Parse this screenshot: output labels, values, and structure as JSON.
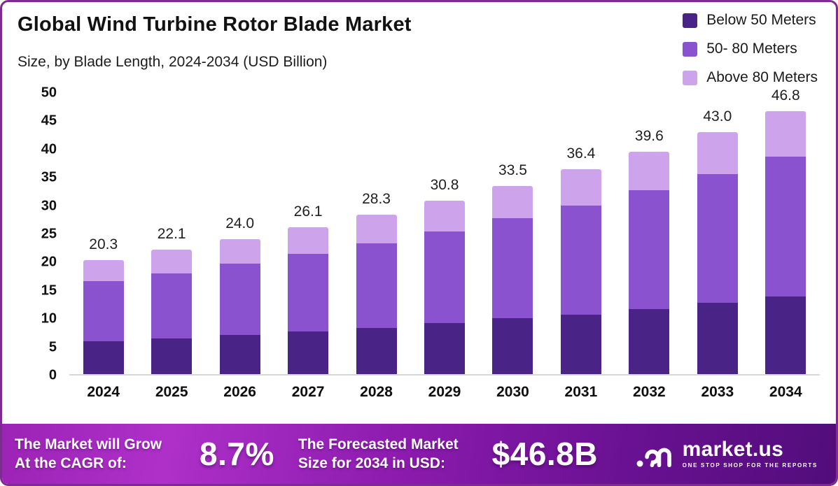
{
  "header": {
    "title": "Global Wind Turbine Rotor Blade Market",
    "subtitle": "Size, by Blade Length, 2024-2034 (USD Billion)"
  },
  "colors": {
    "below_50": "#4a2386",
    "mid_50_80": "#8a52ce",
    "above_80": "#cda4ec",
    "frame_border": "#7d2b92",
    "banner_gradient_left": "#ae30c9",
    "banner_gradient_right": "#520d7a",
    "axis_baseline": "#d8d8d8"
  },
  "chart_data": {
    "type": "bar",
    "stacked": true,
    "title": "Global Wind Turbine Rotor Blade Market Size, by Blade Length, 2024-2034 (USD Billion)",
    "xlabel": "",
    "ylabel": "USD Billion",
    "ylim": [
      0,
      50
    ],
    "y_ticks": [
      0,
      5,
      10,
      15,
      20,
      25,
      30,
      35,
      40,
      45,
      50
    ],
    "grid": false,
    "legend_position": "top-right",
    "categories": [
      "2024",
      "2025",
      "2026",
      "2027",
      "2028",
      "2029",
      "2030",
      "2031",
      "2032",
      "2033",
      "2034"
    ],
    "series": [
      {
        "name": "Below 50 Meters",
        "color": "#4a2386",
        "values": [
          5.9,
          6.3,
          7.0,
          7.6,
          8.2,
          9.1,
          9.9,
          10.6,
          11.6,
          12.7,
          13.8
        ]
      },
      {
        "name": "50- 80 Meters",
        "color": "#8a52ce",
        "values": [
          10.6,
          11.6,
          12.6,
          13.8,
          15.0,
          16.3,
          17.9,
          19.4,
          21.1,
          22.9,
          24.9
        ]
      },
      {
        "name": "Above 80 Meters",
        "color": "#cda4ec",
        "values": [
          3.8,
          4.2,
          4.4,
          4.7,
          5.1,
          5.4,
          5.7,
          6.4,
          6.9,
          7.4,
          8.1
        ]
      }
    ],
    "totals": [
      "20.3",
      "22.1",
      "24.0",
      "26.1",
      "28.3",
      "30.8",
      "33.5",
      "36.4",
      "39.6",
      "43.0",
      "46.8"
    ]
  },
  "legend": [
    {
      "label": "Below 50 Meters",
      "color": "#4a2386"
    },
    {
      "label": "50- 80 Meters",
      "color": "#8a52ce"
    },
    {
      "label": "Above 80 Meters",
      "color": "#cda4ec"
    }
  ],
  "footer": {
    "cagr_label_line1": "The Market will Grow",
    "cagr_label_line2": "At the CAGR of:",
    "cagr_value": "8.7%",
    "forecast_label_line1": "The Forecasted Market",
    "forecast_label_line2": "Size for 2034 in USD:",
    "forecast_value": "$46.8B",
    "brand_name": "market.us",
    "brand_tagline": "ONE STOP SHOP FOR THE REPORTS",
    "brand_icon": "market-us-swirl-logo"
  }
}
